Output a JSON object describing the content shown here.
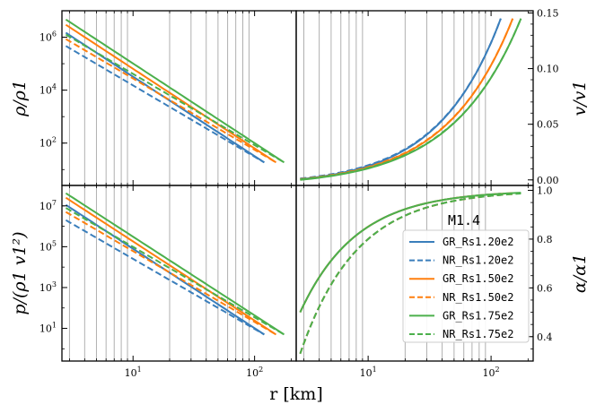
{
  "chart_data": {
    "type": "line",
    "x_label": "r [km]",
    "x_scale": "log",
    "x_lim": [
      2.6,
      220
    ],
    "x_ticks": [
      "10^1",
      "10^2"
    ],
    "vertical_grid_lines_km": [
      3,
      4,
      5,
      6,
      7,
      8,
      9,
      20,
      30,
      40,
      50,
      60,
      70,
      80,
      90
    ],
    "colors": {
      "GR_Rs1.20e2": "#3a7ebb",
      "NR_Rs1.20e2": "#3a7ebb",
      "GR_Rs1.50e2": "#ff7f0e",
      "NR_Rs1.50e2": "#ff7f0e",
      "GR_Rs1.75e2": "#4cb04c",
      "NR_Rs1.75e2": "#4cb04c"
    },
    "legend": {
      "title": "M1.4",
      "placement": "center-right",
      "entries": [
        {
          "label": "GR_Rs1.20e2",
          "style": "solid"
        },
        {
          "label": "NR_Rs1.20e2",
          "style": "dashed"
        },
        {
          "label": "GR_Rs1.50e2",
          "style": "solid"
        },
        {
          "label": "NR_Rs1.50e2",
          "style": "dashed"
        },
        {
          "label": "GR_Rs1.75e2",
          "style": "solid"
        },
        {
          "label": "NR_Rs1.75e2",
          "style": "dashed"
        }
      ]
    },
    "panels": [
      {
        "id": "density",
        "ylabel": "ρ/ρ1",
        "y_scale": "log",
        "y_lim_log10": [
          0.4,
          7.0
        ],
        "y_ticks": [
          "10^2",
          "10^4",
          "10^6"
        ],
        "series": [
          {
            "name": "GR_Rs1.20e2",
            "x": [
              2.8,
              120
            ],
            "y_log10": [
              6.17,
              1.27
            ]
          },
          {
            "name": "NR_Rs1.20e2",
            "x": [
              2.8,
              120
            ],
            "y_log10": [
              5.67,
              1.27
            ]
          },
          {
            "name": "GR_Rs1.50e2",
            "x": [
              2.8,
              150
            ],
            "y_log10": [
              6.47,
              1.27
            ]
          },
          {
            "name": "NR_Rs1.50e2",
            "x": [
              2.8,
              150
            ],
            "y_log10": [
              5.93,
              1.27
            ]
          },
          {
            "name": "GR_Rs1.75e2",
            "x": [
              2.8,
              175
            ],
            "y_log10": [
              6.67,
              1.27
            ]
          },
          {
            "name": "NR_Rs1.75e2",
            "x": [
              2.8,
              175
            ],
            "y_log10": [
              6.1,
              1.27
            ]
          }
        ]
      },
      {
        "id": "velocity",
        "ylabel": "v/v1",
        "y_scale": "linear",
        "y_lim": [
          -0.005,
          0.152
        ],
        "y_ticks": [
          "0.00",
          "0.05",
          "0.10",
          "0.15"
        ],
        "series": [
          {
            "name": "GR_Rs1.20e2",
            "x": [
              2.8,
              120
            ],
            "y": [
              0.0005,
              0.145
            ]
          },
          {
            "name": "NR_Rs1.20e2",
            "x": [
              2.8,
              120
            ],
            "y": [
              0.0012,
              0.145
            ]
          },
          {
            "name": "GR_Rs1.50e2",
            "x": [
              2.8,
              150
            ],
            "y": [
              0.0002,
              0.145
            ]
          },
          {
            "name": "NR_Rs1.50e2",
            "x": [
              2.8,
              150
            ],
            "y": [
              0.0007,
              0.145
            ]
          },
          {
            "name": "GR_Rs1.75e2",
            "x": [
              2.8,
              175
            ],
            "y": [
              0.0,
              0.145
            ]
          },
          {
            "name": "NR_Rs1.75e2",
            "x": [
              2.8,
              175
            ],
            "y": [
              0.0004,
              0.145
            ]
          }
        ]
      },
      {
        "id": "pressure",
        "ylabel": "p/(ρ1 v1²)",
        "y_scale": "log",
        "y_lim_log10": [
          -0.6,
          8.0
        ],
        "y_ticks": [
          "10^1",
          "10^3",
          "10^5",
          "10^7"
        ],
        "series": [
          {
            "name": "GR_Rs1.20e2",
            "x": [
              2.8,
              120
            ],
            "y_log10": [
              7.05,
              0.7
            ]
          },
          {
            "name": "NR_Rs1.20e2",
            "x": [
              2.8,
              120
            ],
            "y_log10": [
              6.3,
              0.7
            ]
          },
          {
            "name": "GR_Rs1.50e2",
            "x": [
              2.8,
              150
            ],
            "y_log10": [
              7.4,
              0.7
            ]
          },
          {
            "name": "NR_Rs1.50e2",
            "x": [
              2.8,
              150
            ],
            "y_log10": [
              6.7,
              0.7
            ]
          },
          {
            "name": "GR_Rs1.75e2",
            "x": [
              2.8,
              175
            ],
            "y_log10": [
              7.62,
              0.7
            ]
          },
          {
            "name": "NR_Rs1.75e2",
            "x": [
              2.8,
              175
            ],
            "y_log10": [
              6.9,
              0.7
            ]
          }
        ]
      },
      {
        "id": "lapse",
        "ylabel": "α/α1",
        "y_scale": "linear",
        "y_lim": [
          0.3,
          1.02
        ],
        "y_ticks": [
          "0.4",
          "0.6",
          "0.8",
          "1.0"
        ],
        "series": [
          {
            "name": "GR_Rs1.20e2",
            "x": [
              2.8,
              120
            ],
            "y": [
              0.5,
              1.0
            ]
          },
          {
            "name": "NR_Rs1.20e2",
            "x": [
              2.8,
              120
            ],
            "y": [
              0.33,
              1.0
            ]
          },
          {
            "name": "GR_Rs1.50e2",
            "x": [
              2.8,
              150
            ],
            "y": [
              0.5,
              1.0
            ]
          },
          {
            "name": "NR_Rs1.50e2",
            "x": [
              2.8,
              150
            ],
            "y": [
              0.33,
              1.0
            ]
          },
          {
            "name": "GR_Rs1.75e2",
            "x": [
              2.8,
              175
            ],
            "y": [
              0.5,
              1.0
            ]
          },
          {
            "name": "NR_Rs1.75e2",
            "x": [
              2.8,
              175
            ],
            "y": [
              0.33,
              1.0
            ]
          }
        ]
      }
    ]
  }
}
